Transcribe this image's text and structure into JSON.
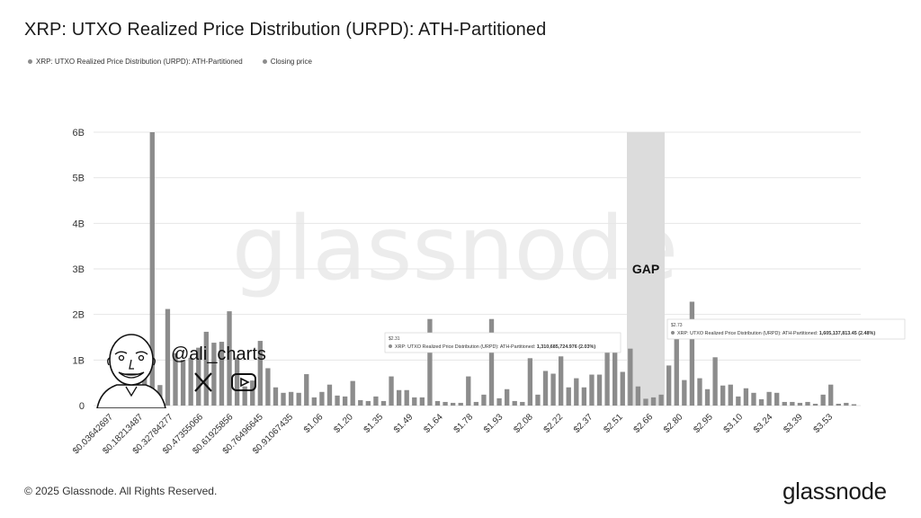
{
  "title": "XRP: UTXO Realized Price Distribution (URPD): ATH-Partitioned",
  "legend": [
    {
      "label": "XRP: UTXO Realized Price Distribution (URPD): ATH-Partitioned",
      "color": "#8c8c8c"
    },
    {
      "label": "Closing price",
      "color": "#8c8c8c"
    }
  ],
  "watermark": "glassnode",
  "gap_label": "GAP",
  "handle": "@ali_charts",
  "footer": {
    "copyright": "© 2025 Glassnode. All Rights Reserved.",
    "brand": "glassnode"
  },
  "tooltips": [
    {
      "price": "$2.31",
      "text": "XRP: UTXO Realized Price Distribution (URPD): ATH-Partitioned: ",
      "value": "1,310,685,724.976 (2.03%)"
    },
    {
      "price": "$2.73",
      "text": "XRP: UTXO Realized Price Distribution (URPD): ATH-Partitioned: ",
      "value": "1,605,137,813.45 (2.48%)"
    }
  ],
  "chart_data": {
    "type": "bar",
    "ylim": [
      0,
      6000000000
    ],
    "yticks": [
      "0",
      "1B",
      "2B",
      "3B",
      "4B",
      "5B",
      "6B"
    ],
    "xticks": [
      "$0.03642697",
      "$0.18213487",
      "$0.32784277",
      "$0.47355066",
      "$0.61925856",
      "$0.76496645",
      "$0.91067435",
      "$1.06",
      "$1.20",
      "$1.35",
      "$1.49",
      "$1.64",
      "$1.78",
      "$1.93",
      "$2.08",
      "$2.22",
      "$2.37",
      "$2.51",
      "$2.66",
      "$2.80",
      "$2.95",
      "$3.10",
      "$3.24",
      "$3.39",
      "$3.53"
    ],
    "grid": true,
    "gap_band": [
      "$2.51",
      "$2.66"
    ],
    "values": [
      0.25,
      0.4,
      0.8,
      0.7,
      6.0,
      0.45,
      2.12,
      1.15,
      1.0,
      1.05,
      1.27,
      1.62,
      1.38,
      1.4,
      2.07,
      1.05,
      0.42,
      0.55,
      1.42,
      0.82,
      0.4,
      0.28,
      0.3,
      0.28,
      0.69,
      0.18,
      0.3,
      0.46,
      0.22,
      0.2,
      0.54,
      0.12,
      0.1,
      0.2,
      0.1,
      0.64,
      0.34,
      0.34,
      0.18,
      0.18,
      1.9,
      0.1,
      0.08,
      0.06,
      0.06,
      0.64,
      0.08,
      0.24,
      1.9,
      0.16,
      0.36,
      0.1,
      0.08,
      1.04,
      0.24,
      0.76,
      0.7,
      1.08,
      0.4,
      0.6,
      0.4,
      0.68,
      0.68,
      1.2,
      1.31,
      0.74,
      1.25,
      0.42,
      0.15,
      0.18,
      0.24,
      0.88,
      1.61,
      0.56,
      2.28,
      0.6,
      0.36,
      1.06,
      0.44,
      0.46,
      0.2,
      0.38,
      0.28,
      0.14,
      0.3,
      0.28,
      0.08,
      0.08,
      0.06,
      0.08,
      0.04,
      0.24,
      0.46,
      0.04,
      0.06,
      0.03
    ]
  }
}
